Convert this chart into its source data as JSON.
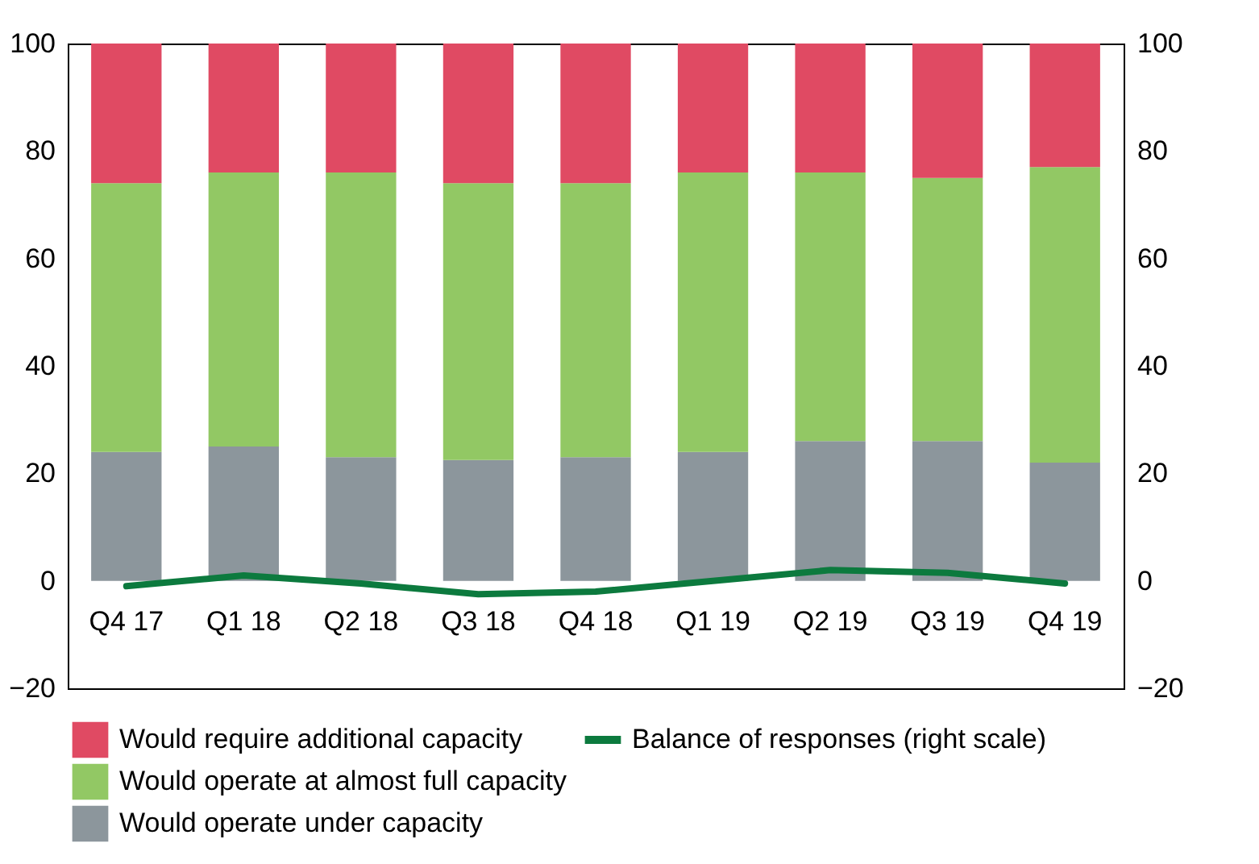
{
  "chart_data": {
    "type": "bar",
    "stacked": true,
    "categories": [
      "Q4 17",
      "Q1 18",
      "Q2 18",
      "Q3 18",
      "Q4 18",
      "Q1 19",
      "Q2 19",
      "Q3 19",
      "Q4 19"
    ],
    "series": [
      {
        "name": "Would operate under capacity",
        "color": "#8c969c",
        "values": [
          24,
          25,
          23,
          22.5,
          23,
          24,
          26,
          26,
          22
        ]
      },
      {
        "name": "Would operate at almost full capacity",
        "color": "#92c864",
        "values": [
          50,
          51,
          53,
          51.5,
          51,
          52,
          50,
          49,
          55
        ]
      },
      {
        "name": "Would require additional capacity",
        "color": "#e04a63",
        "values": [
          26,
          24,
          24,
          26,
          26,
          24,
          24,
          25,
          23
        ]
      },
      {
        "name": "Balance of responses (right scale)",
        "type": "line",
        "axis": "y2",
        "color": "#0c7a3e",
        "values": [
          -1,
          1,
          -0.5,
          -2.5,
          -2,
          0,
          2,
          1.5,
          -0.5
        ]
      }
    ],
    "ylim": [
      -20,
      100
    ],
    "yticks": [
      -20,
      0,
      20,
      40,
      60,
      80,
      100
    ],
    "y2lim": [
      -20,
      100
    ],
    "y2ticks": [
      -20,
      0,
      20,
      40,
      60,
      80,
      100
    ],
    "legend": "bottom",
    "marker": "none",
    "line_style": "solid"
  }
}
